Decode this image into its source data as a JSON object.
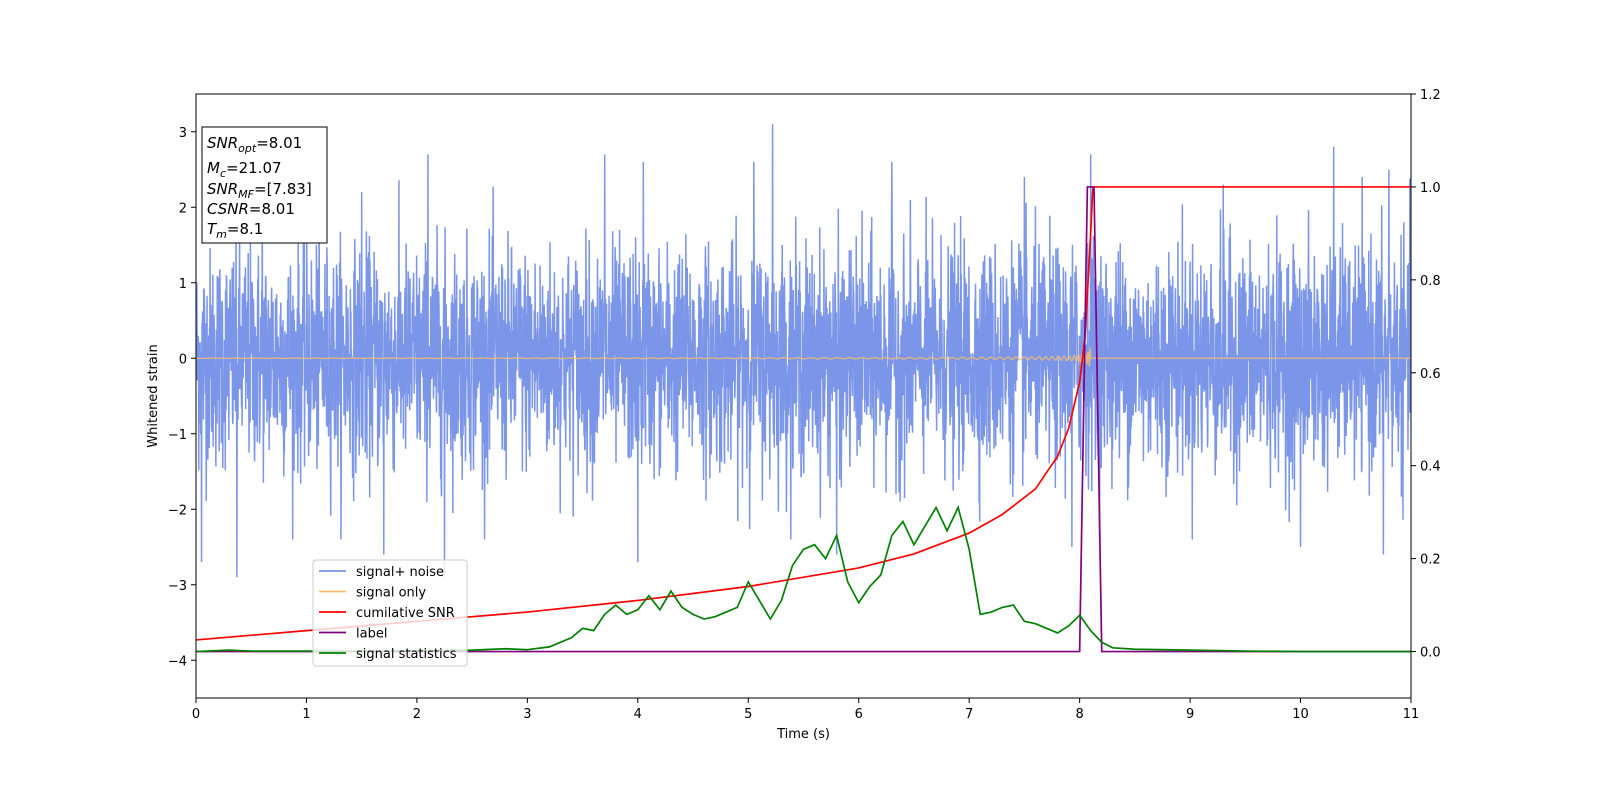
{
  "chart_data": {
    "type": "line",
    "title": "",
    "xlabel": "Time (s)",
    "ylabel_left": "Whitened strain",
    "ylabel_right": "",
    "xlim": [
      0,
      11
    ],
    "ylim_left": [
      -4.5,
      3.5
    ],
    "ylim_right": [
      -0.1,
      1.2
    ],
    "x_ticks": [
      "0",
      "1",
      "2",
      "3",
      "4",
      "5",
      "6",
      "7",
      "8",
      "9",
      "10",
      "11"
    ],
    "y_ticks_left": [
      "3",
      "2",
      "1",
      "0",
      "−1",
      "−2",
      "−3",
      "−4"
    ],
    "y_ticks_right": [
      "1.2",
      "1.0",
      "0.8",
      "0.6",
      "0.4",
      "0.2",
      "0.0"
    ],
    "grid": false,
    "legend_position": "lower-left",
    "annotation": {
      "lines": [
        {
          "sym": "SNR",
          "sub": "opt",
          "val": "=8.01"
        },
        {
          "sym": "M",
          "sub": "c",
          "val": "=21.07"
        },
        {
          "sym": "SNR",
          "sub": "MF",
          "val": "=[7.83]"
        },
        {
          "sym": "CSNR",
          "sub": "",
          "val": "=8.01"
        },
        {
          "sym": "T",
          "sub": "m",
          "val": "=8.1"
        }
      ]
    },
    "series": [
      {
        "name": "signal+ noise",
        "axis": "left",
        "color": "#7b96e8",
        "style": "noise",
        "sigma": 0.72,
        "peaks_max": [
          [
            0.6,
            2.3
          ],
          [
            1.5,
            2.2
          ],
          [
            2.1,
            2.7
          ],
          [
            3.7,
            2.7
          ],
          [
            4.05,
            2.6
          ],
          [
            5.05,
            2.6
          ],
          [
            5.22,
            3.1
          ],
          [
            6.3,
            2.6
          ],
          [
            7.5,
            2.4
          ],
          [
            8.1,
            2.7
          ],
          [
            9.3,
            2.3
          ],
          [
            10.3,
            2.8
          ],
          [
            10.8,
            2.5
          ]
        ],
        "peaks_min": [
          [
            0.05,
            -2.7
          ],
          [
            0.37,
            -2.9
          ],
          [
            1.7,
            -2.6
          ],
          [
            2.25,
            -2.9
          ],
          [
            4.0,
            -2.7
          ],
          [
            5.8,
            -2.6
          ],
          [
            7.93,
            -2.5
          ],
          [
            10.0,
            -2.5
          ],
          [
            10.75,
            -2.6
          ]
        ]
      },
      {
        "name": "signal only",
        "axis": "left",
        "color": "#f5be6e",
        "style": "chirp",
        "merger_time": 8.1,
        "peak_amplitude": 0.45
      },
      {
        "name": "cumilative SNR",
        "axis": "right",
        "color": "#ff0000",
        "x": [
          0,
          1,
          2,
          3,
          4,
          5,
          6,
          6.5,
          7,
          7.3,
          7.6,
          7.8,
          7.9,
          8.0,
          8.05,
          8.1,
          8.12,
          11
        ],
        "values": [
          0.025,
          0.045,
          0.065,
          0.085,
          0.11,
          0.14,
          0.18,
          0.21,
          0.255,
          0.295,
          0.35,
          0.42,
          0.48,
          0.58,
          0.68,
          0.9,
          1.0,
          1.0
        ]
      },
      {
        "name": "label",
        "axis": "right",
        "color": "#800080",
        "x": [
          0,
          8.0,
          8.07,
          8.13,
          8.2,
          11
        ],
        "values": [
          0,
          0,
          1.0,
          1.0,
          0,
          0
        ]
      },
      {
        "name": "signal statistics",
        "axis": "right",
        "color": "#008000",
        "x": [
          0,
          0.3,
          0.5,
          1,
          1.5,
          2,
          2.5,
          2.8,
          3.0,
          3.2,
          3.4,
          3.5,
          3.6,
          3.7,
          3.8,
          3.9,
          4.0,
          4.1,
          4.2,
          4.3,
          4.4,
          4.5,
          4.6,
          4.7,
          4.8,
          4.9,
          5.0,
          5.1,
          5.2,
          5.3,
          5.4,
          5.5,
          5.6,
          5.7,
          5.8,
          5.9,
          6.0,
          6.1,
          6.2,
          6.3,
          6.4,
          6.5,
          6.6,
          6.7,
          6.8,
          6.9,
          7.0,
          7.1,
          7.2,
          7.3,
          7.4,
          7.5,
          7.6,
          7.7,
          7.8,
          7.9,
          8.0,
          8.1,
          8.2,
          8.3,
          8.5,
          9.0,
          9.5,
          10,
          11
        ],
        "values": [
          0.0,
          0.003,
          0.001,
          0.001,
          0.001,
          0.002,
          0.003,
          0.006,
          0.004,
          0.01,
          0.03,
          0.05,
          0.045,
          0.08,
          0.1,
          0.08,
          0.09,
          0.12,
          0.09,
          0.13,
          0.095,
          0.08,
          0.07,
          0.075,
          0.085,
          0.095,
          0.15,
          0.11,
          0.07,
          0.11,
          0.185,
          0.22,
          0.23,
          0.2,
          0.25,
          0.15,
          0.105,
          0.14,
          0.165,
          0.25,
          0.28,
          0.23,
          0.27,
          0.31,
          0.26,
          0.31,
          0.22,
          0.08,
          0.085,
          0.095,
          0.1,
          0.065,
          0.06,
          0.05,
          0.04,
          0.055,
          0.078,
          0.045,
          0.02,
          0.008,
          0.005,
          0.003,
          0.001,
          0.0,
          0.0
        ]
      }
    ]
  }
}
